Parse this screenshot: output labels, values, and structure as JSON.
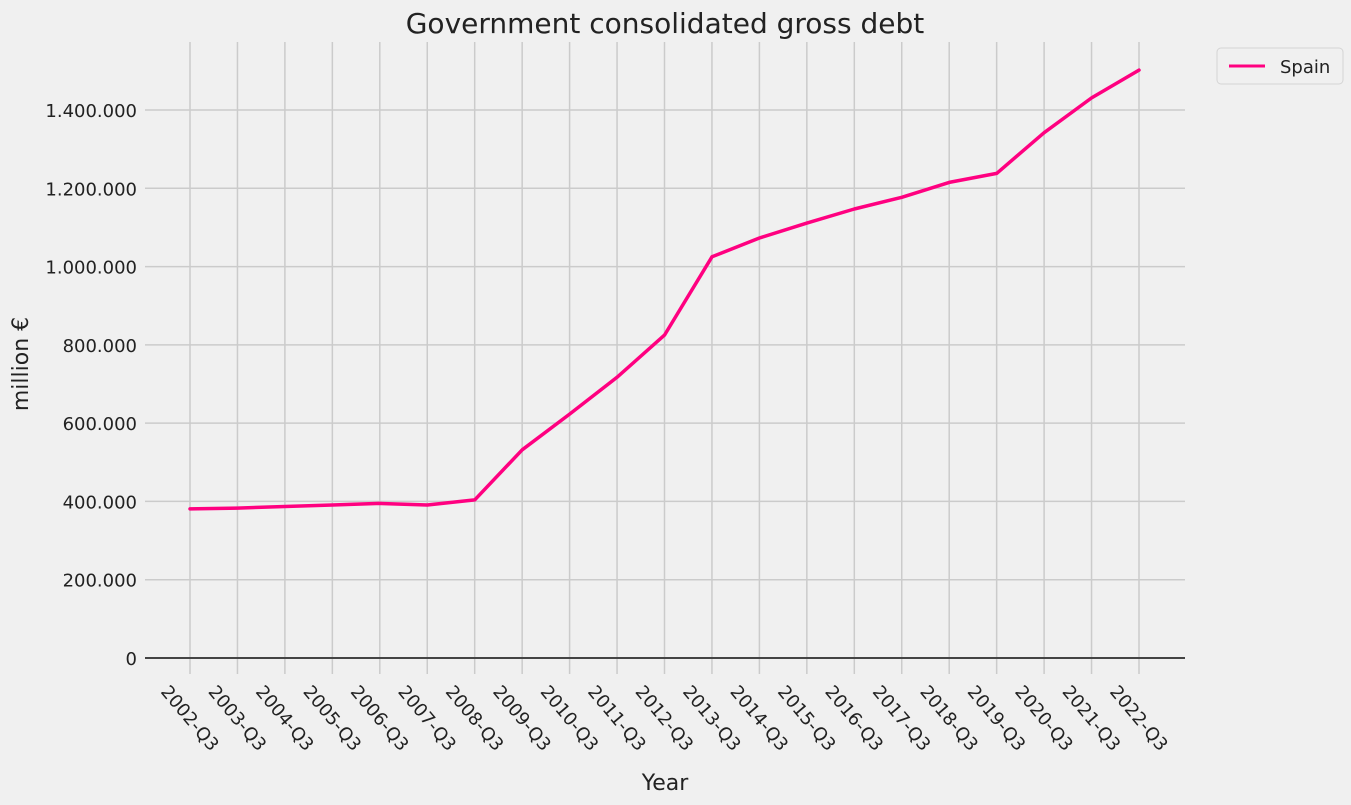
{
  "chart_data": {
    "type": "line",
    "title": "Government consolidated gross debt",
    "xlabel": "Year",
    "ylabel": "million €",
    "categories": [
      "2002-Q3",
      "2003-Q3",
      "2004-Q3",
      "2005-Q3",
      "2006-Q3",
      "2007-Q3",
      "2008-Q3",
      "2009-Q3",
      "2010-Q3",
      "2011-Q3",
      "2012-Q3",
      "2013-Q3",
      "2014-Q3",
      "2015-Q3",
      "2016-Q3",
      "2017-Q3",
      "2018-Q3",
      "2019-Q3",
      "2020-Q3",
      "2021-Q3",
      "2022-Q3"
    ],
    "series": [
      {
        "name": "Spain",
        "color": "#ff0080",
        "values": [
          381000,
          383000,
          387000,
          391000,
          395000,
          391000,
          404000,
          532000,
          623000,
          717000,
          825000,
          1025000,
          1073000,
          1111000,
          1147000,
          1177000,
          1215000,
          1238000,
          1342000,
          1431000,
          1502000
        ]
      }
    ],
    "ylim": [
      -40000,
      1570000
    ],
    "yticks": [
      0,
      200000,
      400000,
      600000,
      800000,
      1000000,
      1200000,
      1400000
    ],
    "ytick_labels": [
      "0",
      "200.000",
      "400.000",
      "600.000",
      "800.000",
      "1.000.000",
      "1.200.000",
      "1.400.000"
    ],
    "grid": true,
    "legend_position": "top-right outside"
  }
}
